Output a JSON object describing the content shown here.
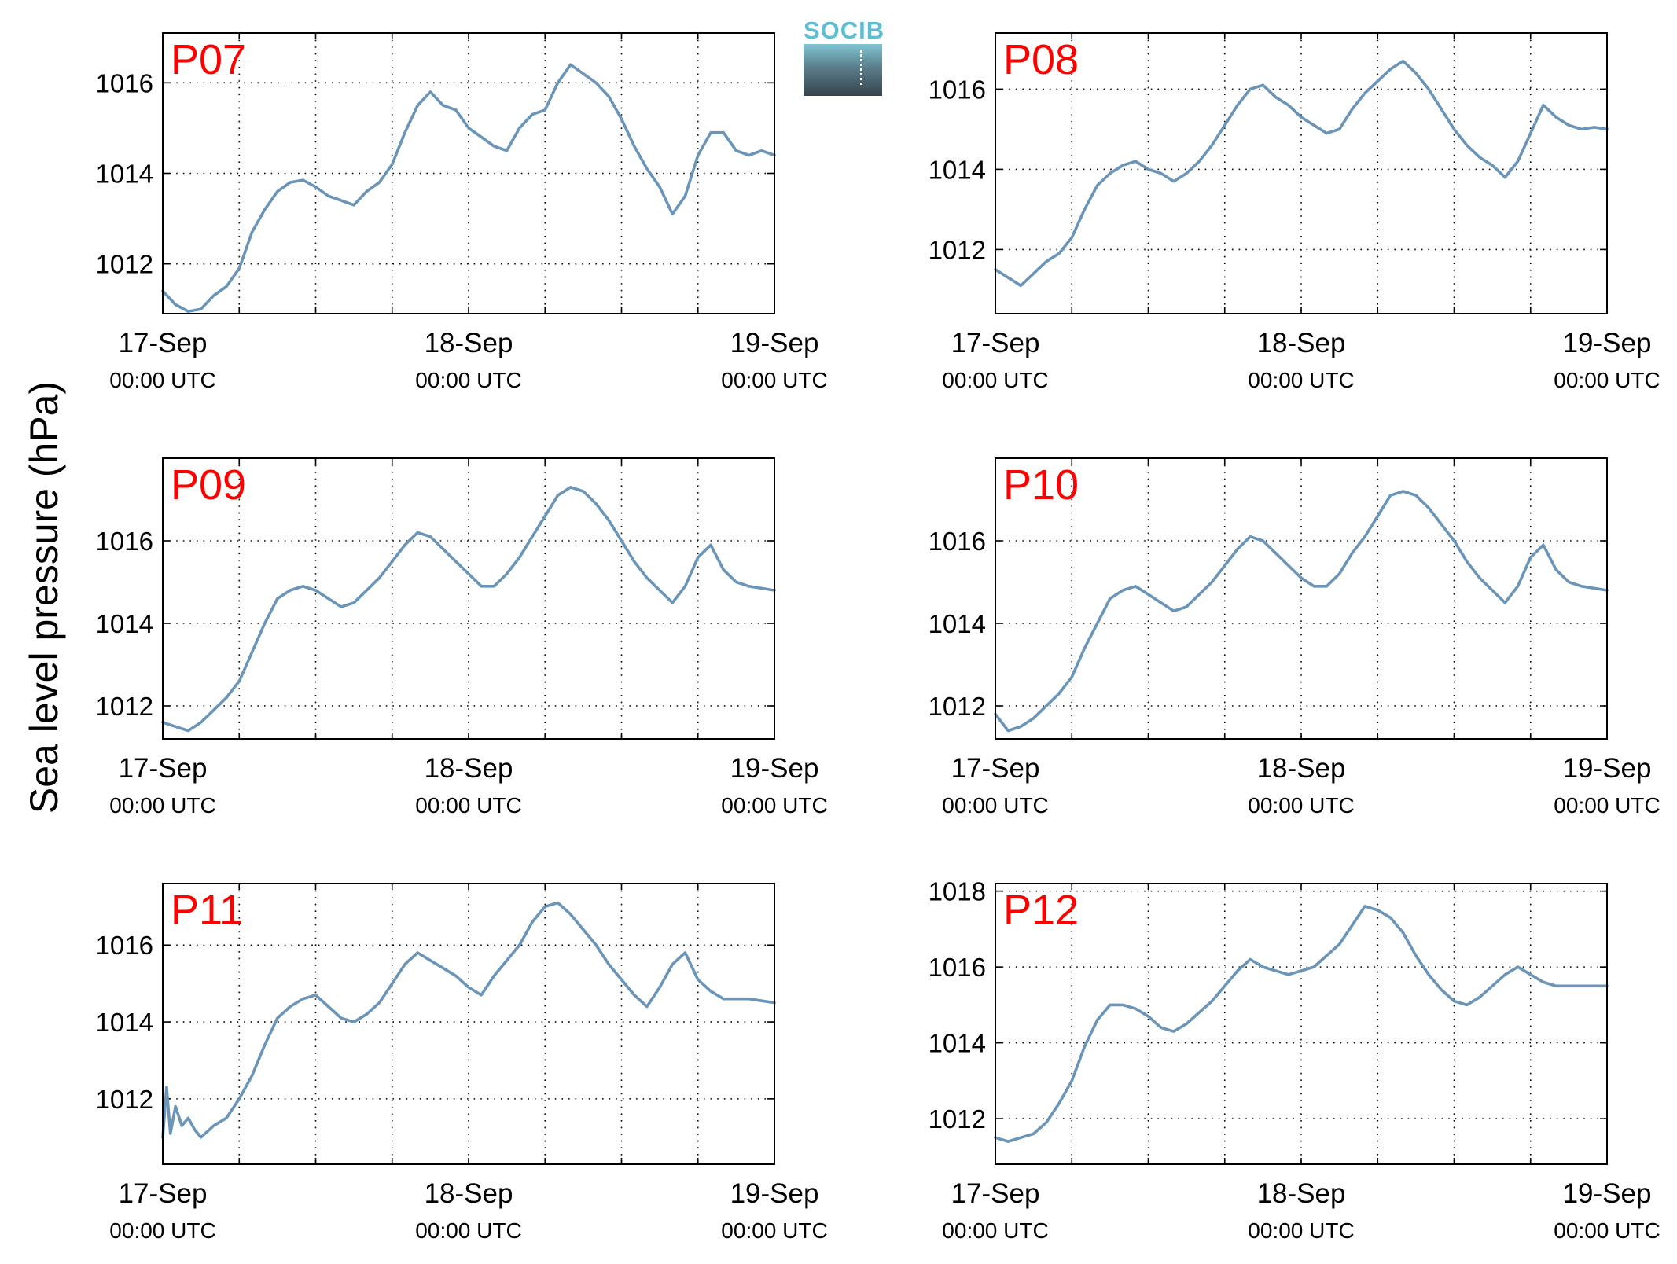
{
  "ylabel": "Sea level pressure (hPa)",
  "logo": {
    "text": "SOCIB",
    "text_color": "#5fbdd2"
  },
  "colors": {
    "line": "#6a95b8",
    "panel_title": "#ff0000",
    "axis": "#000000",
    "grid": "#000000"
  },
  "chart_data": [
    {
      "type": "line",
      "title": "P07",
      "x_ticks": [
        {
          "day": "17-Sep",
          "time": "00:00 UTC"
        },
        {
          "day": "18-Sep",
          "time": "00:00 UTC"
        },
        {
          "day": "19-Sep",
          "time": "00:00 UTC"
        }
      ],
      "xlim_hours": [
        0,
        48
      ],
      "ylim": [
        1010.9,
        1017.1
      ],
      "yticks": [
        1012,
        1014,
        1016
      ],
      "grid": true,
      "x_hours": [
        0,
        1,
        2,
        3,
        4,
        5,
        6,
        7,
        8,
        9,
        10,
        11,
        12,
        13,
        14,
        15,
        16,
        17,
        18,
        19,
        20,
        21,
        22,
        23,
        24,
        25,
        26,
        27,
        28,
        29,
        30,
        31,
        32,
        33,
        34,
        35,
        36,
        37,
        38,
        39,
        40,
        41,
        42,
        43,
        44,
        45,
        46,
        47,
        48
      ],
      "values": [
        1011.4,
        1011.1,
        1010.95,
        1011.0,
        1011.3,
        1011.5,
        1011.9,
        1012.7,
        1013.2,
        1013.6,
        1013.8,
        1013.85,
        1013.7,
        1013.5,
        1013.4,
        1013.3,
        1013.6,
        1013.8,
        1014.2,
        1014.9,
        1015.5,
        1015.8,
        1015.5,
        1015.4,
        1015.0,
        1014.8,
        1014.6,
        1014.5,
        1015.0,
        1015.3,
        1015.4,
        1016.0,
        1016.4,
        1016.2,
        1016.0,
        1015.7,
        1015.2,
        1014.6,
        1014.1,
        1013.7,
        1013.1,
        1013.5,
        1014.4,
        1014.9,
        1014.9,
        1014.5,
        1014.4,
        1014.5,
        1014.4
      ]
    },
    {
      "type": "line",
      "title": "P08",
      "x_ticks": [
        {
          "day": "17-Sep",
          "time": "00:00 UTC"
        },
        {
          "day": "18-Sep",
          "time": "00:00 UTC"
        },
        {
          "day": "19-Sep",
          "time": "00:00 UTC"
        }
      ],
      "xlim_hours": [
        0,
        48
      ],
      "ylim": [
        1010.4,
        1017.4
      ],
      "yticks": [
        1012,
        1014,
        1016
      ],
      "grid": true,
      "x_hours": [
        0,
        1,
        2,
        3,
        4,
        5,
        6,
        7,
        8,
        9,
        10,
        11,
        12,
        13,
        14,
        15,
        16,
        17,
        18,
        19,
        20,
        21,
        22,
        23,
        24,
        25,
        26,
        27,
        28,
        29,
        30,
        31,
        32,
        33,
        34,
        35,
        36,
        37,
        38,
        39,
        40,
        41,
        42,
        43,
        44,
        45,
        46,
        47,
        48
      ],
      "values": [
        1011.5,
        1011.3,
        1011.1,
        1011.4,
        1011.7,
        1011.9,
        1012.3,
        1013.0,
        1013.6,
        1013.9,
        1014.1,
        1014.2,
        1014.0,
        1013.9,
        1013.7,
        1013.9,
        1014.2,
        1014.6,
        1015.1,
        1015.6,
        1016.0,
        1016.1,
        1015.8,
        1015.6,
        1015.3,
        1015.1,
        1014.9,
        1015.0,
        1015.5,
        1015.9,
        1016.2,
        1016.5,
        1016.7,
        1016.4,
        1016.0,
        1015.5,
        1015.0,
        1014.6,
        1014.3,
        1014.1,
        1013.8,
        1014.2,
        1014.9,
        1015.6,
        1015.3,
        1015.1,
        1015.0,
        1015.05,
        1015.0
      ]
    },
    {
      "type": "line",
      "title": "P09",
      "x_ticks": [
        {
          "day": "17-Sep",
          "time": "00:00 UTC"
        },
        {
          "day": "18-Sep",
          "time": "00:00 UTC"
        },
        {
          "day": "19-Sep",
          "time": "00:00 UTC"
        }
      ],
      "xlim_hours": [
        0,
        48
      ],
      "ylim": [
        1011.2,
        1018.0
      ],
      "yticks": [
        1012,
        1014,
        1016
      ],
      "grid": true,
      "x_hours": [
        0,
        1,
        2,
        3,
        4,
        5,
        6,
        7,
        8,
        9,
        10,
        11,
        12,
        13,
        14,
        15,
        16,
        17,
        18,
        19,
        20,
        21,
        22,
        23,
        24,
        25,
        26,
        27,
        28,
        29,
        30,
        31,
        32,
        33,
        34,
        35,
        36,
        37,
        38,
        39,
        40,
        41,
        42,
        43,
        44,
        45,
        46,
        47,
        48
      ],
      "values": [
        1011.6,
        1011.5,
        1011.4,
        1011.6,
        1011.9,
        1012.2,
        1012.6,
        1013.3,
        1014.0,
        1014.6,
        1014.8,
        1014.9,
        1014.8,
        1014.6,
        1014.4,
        1014.5,
        1014.8,
        1015.1,
        1015.5,
        1015.9,
        1016.2,
        1016.1,
        1015.8,
        1015.5,
        1015.2,
        1014.9,
        1014.9,
        1015.2,
        1015.6,
        1016.1,
        1016.6,
        1017.1,
        1017.3,
        1017.2,
        1016.9,
        1016.5,
        1016.0,
        1015.5,
        1015.1,
        1014.8,
        1014.5,
        1014.9,
        1015.6,
        1015.9,
        1015.3,
        1015.0,
        1014.9,
        1014.85,
        1014.8
      ]
    },
    {
      "type": "line",
      "title": "P10",
      "x_ticks": [
        {
          "day": "17-Sep",
          "time": "00:00 UTC"
        },
        {
          "day": "18-Sep",
          "time": "00:00 UTC"
        },
        {
          "day": "19-Sep",
          "time": "00:00 UTC"
        }
      ],
      "xlim_hours": [
        0,
        48
      ],
      "ylim": [
        1011.2,
        1018.0
      ],
      "yticks": [
        1012,
        1014,
        1016
      ],
      "grid": true,
      "x_hours": [
        0,
        1,
        2,
        3,
        4,
        5,
        6,
        7,
        8,
        9,
        10,
        11,
        12,
        13,
        14,
        15,
        16,
        17,
        18,
        19,
        20,
        21,
        22,
        23,
        24,
        25,
        26,
        27,
        28,
        29,
        30,
        31,
        32,
        33,
        34,
        35,
        36,
        37,
        38,
        39,
        40,
        41,
        42,
        43,
        44,
        45,
        46,
        47,
        48
      ],
      "values": [
        1011.8,
        1011.4,
        1011.5,
        1011.7,
        1012.0,
        1012.3,
        1012.7,
        1013.4,
        1014.0,
        1014.6,
        1014.8,
        1014.9,
        1014.7,
        1014.5,
        1014.3,
        1014.4,
        1014.7,
        1015.0,
        1015.4,
        1015.8,
        1016.1,
        1016.0,
        1015.7,
        1015.4,
        1015.1,
        1014.9,
        1014.9,
        1015.2,
        1015.7,
        1016.1,
        1016.6,
        1017.1,
        1017.2,
        1017.1,
        1016.8,
        1016.4,
        1016.0,
        1015.5,
        1015.1,
        1014.8,
        1014.5,
        1014.9,
        1015.6,
        1015.9,
        1015.3,
        1015.0,
        1014.9,
        1014.85,
        1014.8
      ]
    },
    {
      "type": "line",
      "title": "P11",
      "x_ticks": [
        {
          "day": "17-Sep",
          "time": "00:00 UTC"
        },
        {
          "day": "18-Sep",
          "time": "00:00 UTC"
        },
        {
          "day": "19-Sep",
          "time": "00:00 UTC"
        }
      ],
      "xlim_hours": [
        0,
        48
      ],
      "ylim": [
        1010.3,
        1017.6
      ],
      "yticks": [
        1012,
        1014,
        1016
      ],
      "grid": true,
      "x_hours": [
        0,
        0.3,
        0.6,
        1,
        1.5,
        2,
        2.5,
        3,
        4,
        5,
        6,
        7,
        8,
        9,
        10,
        11,
        12,
        13,
        14,
        15,
        16,
        17,
        18,
        19,
        20,
        21,
        22,
        23,
        24,
        25,
        26,
        27,
        28,
        29,
        30,
        31,
        32,
        33,
        34,
        35,
        36,
        37,
        38,
        39,
        40,
        41,
        42,
        43,
        44,
        45,
        46,
        47,
        48
      ],
      "values": [
        1011.0,
        1012.3,
        1011.1,
        1011.8,
        1011.3,
        1011.5,
        1011.2,
        1011.0,
        1011.3,
        1011.5,
        1012.0,
        1012.6,
        1013.4,
        1014.1,
        1014.4,
        1014.6,
        1014.7,
        1014.4,
        1014.1,
        1014.0,
        1014.2,
        1014.5,
        1015.0,
        1015.5,
        1015.8,
        1015.6,
        1015.4,
        1015.2,
        1014.9,
        1014.7,
        1015.2,
        1015.6,
        1016.0,
        1016.6,
        1017.0,
        1017.1,
        1016.8,
        1016.4,
        1016.0,
        1015.5,
        1015.1,
        1014.7,
        1014.4,
        1014.9,
        1015.5,
        1015.8,
        1015.1,
        1014.8,
        1014.6,
        1014.6,
        1014.6,
        1014.55,
        1014.5
      ]
    },
    {
      "type": "line",
      "title": "P12",
      "x_ticks": [
        {
          "day": "17-Sep",
          "time": "00:00 UTC"
        },
        {
          "day": "18-Sep",
          "time": "00:00 UTC"
        },
        {
          "day": "19-Sep",
          "time": "00:00 UTC"
        }
      ],
      "xlim_hours": [
        0,
        48
      ],
      "ylim": [
        1010.8,
        1018.2
      ],
      "yticks": [
        1012,
        1014,
        1016,
        1018
      ],
      "grid": true,
      "x_hours": [
        0,
        1,
        2,
        3,
        4,
        5,
        6,
        7,
        8,
        9,
        10,
        11,
        12,
        13,
        14,
        15,
        16,
        17,
        18,
        19,
        20,
        21,
        22,
        23,
        24,
        25,
        26,
        27,
        28,
        29,
        30,
        31,
        32,
        33,
        34,
        35,
        36,
        37,
        38,
        39,
        40,
        41,
        42,
        43,
        44,
        45,
        46,
        47,
        48
      ],
      "values": [
        1011.5,
        1011.4,
        1011.5,
        1011.6,
        1011.9,
        1012.4,
        1013.0,
        1013.9,
        1014.6,
        1015.0,
        1015.0,
        1014.9,
        1014.7,
        1014.4,
        1014.3,
        1014.5,
        1014.8,
        1015.1,
        1015.5,
        1015.9,
        1016.2,
        1016.0,
        1015.9,
        1015.8,
        1015.9,
        1016.0,
        1016.3,
        1016.6,
        1017.1,
        1017.6,
        1017.5,
        1017.3,
        1016.9,
        1016.3,
        1015.8,
        1015.4,
        1015.1,
        1015.0,
        1015.2,
        1015.5,
        1015.8,
        1016.0,
        1015.8,
        1015.6,
        1015.5,
        1015.5,
        1015.5,
        1015.5,
        1015.5
      ]
    }
  ]
}
